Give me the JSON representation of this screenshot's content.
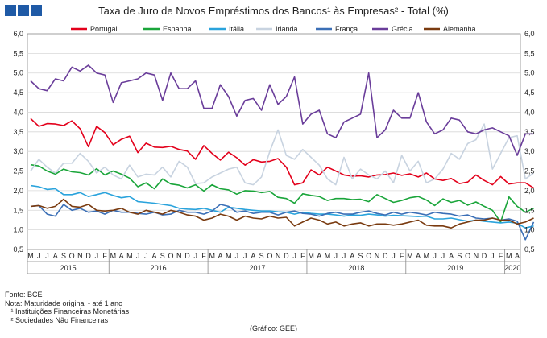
{
  "title": "Taxa de Juro de Novos Empréstimos dos Bancos¹ às Empresas² - Total (%)",
  "notes": {
    "source": "Fonte: BCE",
    "note": "Nota: Maturidade original - até 1 ano",
    "footnote1": "   ¹ Instituições Financeiras Monetárias",
    "footnote2": "   ² Sociedades Não Financeiras"
  },
  "credit": "(Gráfico: GEE)",
  "chart_data": {
    "type": "line",
    "ylim": [
      0.5,
      6.0
    ],
    "yticks": [
      "0,5",
      "1,0",
      "1,5",
      "2,0",
      "2,5",
      "3,0",
      "3,5",
      "4,0",
      "4,5",
      "5,0",
      "5,5",
      "6,0"
    ],
    "month_labels": [
      "M",
      "J",
      "J",
      "A",
      "S",
      "O",
      "N",
      "D",
      "J",
      "F",
      "M",
      "A",
      "M",
      "J",
      "J",
      "A",
      "S",
      "O",
      "N",
      "D",
      "J",
      "F",
      "M",
      "A",
      "M",
      "J",
      "J",
      "A",
      "S",
      "O",
      "N",
      "D",
      "J",
      "F",
      "M",
      "A",
      "M",
      "J",
      "J",
      "A",
      "S",
      "O",
      "N",
      "D",
      "J",
      "F",
      "M",
      "A",
      "M",
      "J",
      "J",
      "A",
      "S",
      "O",
      "N",
      "D",
      "J",
      "F",
      "M",
      "A"
    ],
    "years": [
      {
        "label": "2015",
        "start": 0,
        "end": 9
      },
      {
        "label": "2016",
        "start": 10,
        "end": 21
      },
      {
        "label": "2017",
        "start": 22,
        "end": 33
      },
      {
        "label": "2018",
        "start": 34,
        "end": 45
      },
      {
        "label": "2019",
        "start": 46,
        "end": 57
      },
      {
        "label": "2020",
        "start": 58,
        "end": 61
      }
    ],
    "grid": true,
    "legend": "top",
    "series": [
      {
        "name": "Portugal",
        "color": "#e3001b",
        "values": [
          3.84,
          3.64,
          3.71,
          3.7,
          3.66,
          3.78,
          3.58,
          3.12,
          3.64,
          3.48,
          3.17,
          3.31,
          3.39,
          2.97,
          3.21,
          3.11,
          3.1,
          3.13,
          3.05,
          3.01,
          2.8,
          3.15,
          2.95,
          2.78,
          2.98,
          2.84,
          2.65,
          2.79,
          2.73,
          2.75,
          2.82,
          2.6,
          2.15,
          2.2,
          2.53,
          2.4,
          2.6,
          2.5,
          2.4,
          2.37,
          2.38,
          2.35,
          2.4,
          2.41,
          2.45,
          2.39,
          2.43,
          2.35,
          2.45,
          2.3,
          2.26,
          2.31,
          2.18,
          2.22,
          2.4,
          2.26,
          2.15,
          2.36,
          2.17,
          2.2,
          2.2,
          2.07
        ]
      },
      {
        "name": "Espanha",
        "color": "#1aa53a",
        "values": [
          2.66,
          2.63,
          2.5,
          2.42,
          2.55,
          2.48,
          2.46,
          2.4,
          2.56,
          2.4,
          2.5,
          2.42,
          2.32,
          2.1,
          2.2,
          2.05,
          2.3,
          2.17,
          2.14,
          2.07,
          2.15,
          1.99,
          2.15,
          2.05,
          2.02,
          1.91,
          2.0,
          1.99,
          1.95,
          1.98,
          1.83,
          1.8,
          1.68,
          1.92,
          1.88,
          1.85,
          1.75,
          1.8,
          1.8,
          1.77,
          1.78,
          1.72,
          1.9,
          1.8,
          1.7,
          1.75,
          1.82,
          1.85,
          1.76,
          1.62,
          1.79,
          1.7,
          1.75,
          1.63,
          1.71,
          1.6,
          1.5,
          1.2,
          1.84,
          1.6,
          1.45,
          1.55
        ]
      },
      {
        "name": "Itália",
        "color": "#2aa3dc",
        "values": [
          2.13,
          2.1,
          2.03,
          2.05,
          1.9,
          1.9,
          1.95,
          1.85,
          1.9,
          1.95,
          1.88,
          1.82,
          1.85,
          1.72,
          1.7,
          1.68,
          1.65,
          1.62,
          1.55,
          1.53,
          1.52,
          1.55,
          1.5,
          1.45,
          1.58,
          1.55,
          1.52,
          1.5,
          1.48,
          1.48,
          1.46,
          1.45,
          1.4,
          1.45,
          1.42,
          1.4,
          1.4,
          1.38,
          1.35,
          1.38,
          1.37,
          1.4,
          1.38,
          1.35,
          1.37,
          1.36,
          1.35,
          1.34,
          1.35,
          1.28,
          1.28,
          1.3,
          1.26,
          1.22,
          1.25,
          1.22,
          1.2,
          1.18,
          1.2,
          1.17,
          1.05,
          1.1
        ]
      },
      {
        "name": "Irlanda",
        "color": "#c8d3e0",
        "values": [
          2.5,
          2.8,
          2.6,
          2.45,
          2.7,
          2.7,
          2.95,
          2.75,
          2.45,
          2.6,
          2.4,
          2.3,
          2.65,
          2.35,
          2.42,
          2.4,
          2.6,
          2.35,
          2.75,
          2.6,
          2.18,
          2.2,
          2.35,
          2.45,
          2.55,
          2.6,
          2.2,
          2.15,
          2.35,
          3.0,
          3.55,
          2.9,
          2.8,
          3.05,
          2.85,
          2.65,
          2.3,
          2.15,
          2.85,
          2.3,
          2.55,
          2.4,
          2.3,
          2.5,
          2.2,
          2.9,
          2.5,
          2.75,
          2.2,
          2.3,
          2.55,
          2.95,
          2.8,
          3.2,
          3.3,
          3.7,
          2.55,
          2.95,
          3.35,
          3.4,
          2.3,
          2.45
        ]
      },
      {
        "name": "França",
        "color": "#3b6fb6",
        "values": [
          1.6,
          1.62,
          1.4,
          1.35,
          1.65,
          1.5,
          1.55,
          1.45,
          1.48,
          1.4,
          1.5,
          1.45,
          1.45,
          1.42,
          1.4,
          1.45,
          1.38,
          1.4,
          1.5,
          1.45,
          1.45,
          1.4,
          1.48,
          1.65,
          1.6,
          1.45,
          1.48,
          1.42,
          1.45,
          1.45,
          1.38,
          1.45,
          1.48,
          1.42,
          1.4,
          1.35,
          1.42,
          1.45,
          1.4,
          1.4,
          1.45,
          1.48,
          1.42,
          1.38,
          1.45,
          1.4,
          1.45,
          1.42,
          1.38,
          1.45,
          1.42,
          1.4,
          1.35,
          1.38,
          1.3,
          1.28,
          1.3,
          1.25,
          1.28,
          1.22,
          0.75,
          1.2
        ]
      },
      {
        "name": "Grécia",
        "color": "#6a3d9a",
        "values": [
          4.8,
          4.6,
          4.55,
          4.85,
          4.8,
          5.15,
          5.05,
          5.2,
          5.0,
          4.95,
          4.25,
          4.75,
          4.8,
          4.85,
          5.0,
          4.95,
          4.3,
          5.0,
          4.6,
          4.6,
          4.8,
          4.1,
          4.1,
          4.7,
          4.4,
          3.9,
          4.3,
          4.35,
          4.05,
          4.7,
          4.2,
          4.4,
          4.9,
          3.7,
          3.95,
          4.05,
          3.45,
          3.35,
          3.75,
          3.85,
          3.95,
          5.0,
          3.35,
          3.55,
          4.05,
          3.85,
          3.85,
          4.5,
          3.75,
          3.45,
          3.55,
          3.85,
          3.8,
          3.5,
          3.45,
          3.55,
          3.6,
          3.5,
          3.4,
          2.9,
          3.45,
          3.45
        ]
      },
      {
        "name": "Alemanha",
        "color": "#7a3b10",
        "values": [
          1.6,
          1.62,
          1.55,
          1.6,
          1.78,
          1.6,
          1.58,
          1.65,
          1.5,
          1.48,
          1.5,
          1.55,
          1.45,
          1.4,
          1.5,
          1.45,
          1.4,
          1.5,
          1.45,
          1.38,
          1.35,
          1.25,
          1.3,
          1.4,
          1.35,
          1.25,
          1.35,
          1.3,
          1.28,
          1.35,
          1.3,
          1.32,
          1.1,
          1.2,
          1.3,
          1.25,
          1.15,
          1.2,
          1.1,
          1.15,
          1.18,
          1.1,
          1.15,
          1.15,
          1.12,
          1.15,
          1.2,
          1.25,
          1.12,
          1.1,
          1.1,
          1.05,
          1.15,
          1.2,
          1.25,
          1.25,
          1.3,
          1.25,
          1.25,
          1.15,
          1.2,
          1.3
        ]
      }
    ]
  }
}
